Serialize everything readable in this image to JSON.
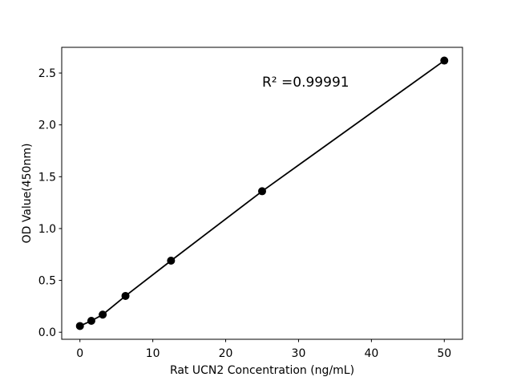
{
  "chart_data": {
    "type": "scatter",
    "title": "",
    "xlabel": "Rat UCN2 Concentration (ng/mL)",
    "ylabel": "OD Value(450nm)",
    "series": [
      {
        "name": "standard-curve",
        "x": [
          0,
          1.5625,
          3.125,
          6.25,
          12.5,
          25,
          50
        ],
        "y": [
          0.06,
          0.11,
          0.17,
          0.35,
          0.69,
          1.36,
          2.62
        ]
      }
    ],
    "annotation": {
      "text": "R² =0.99991",
      "x": 25,
      "y": 2.37
    },
    "xlim": [
      -2.5,
      52.5
    ],
    "ylim": [
      -0.068,
      2.748
    ],
    "xticks": [
      0,
      10,
      20,
      30,
      40,
      50
    ],
    "xtick_labels": [
      "0",
      "10",
      "20",
      "30",
      "40",
      "50"
    ],
    "yticks": [
      0,
      0.5,
      1.0,
      1.5,
      2.0,
      2.5
    ],
    "ytick_labels": [
      "0.0",
      "0.5",
      "1.0",
      "1.5",
      "2.0",
      "2.5"
    ],
    "grid": false,
    "legend": null,
    "line_color": "#000000",
    "marker_color": "#000000",
    "axis_color": "#000000",
    "background": "#ffffff"
  }
}
